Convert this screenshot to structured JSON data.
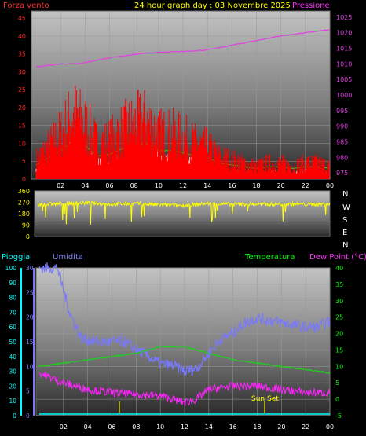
{
  "header": {
    "left": "Forza vento",
    "center": "24 hour graph day : 03 Novembre 2025",
    "right": "Pressione"
  },
  "direction_letters": [
    "N",
    "W",
    "S",
    "E",
    "N"
  ],
  "lower_labels": {
    "rain": "Pioggia",
    "humidity": "Umidita",
    "temperature": "Temperatura",
    "dewpoint": "Dew Point (°C)",
    "sunset": "Sun Set"
  },
  "colors": {
    "wind": "#ff0000",
    "gust": "#00ff00",
    "pressure": "#e040e0",
    "direction": "#ffff00",
    "humidity": "#7878ff",
    "temperature": "#22cc22",
    "dewpoint": "#ff22ff",
    "rain": "#00ffff",
    "text_red": "#ff3030",
    "text_yellow": "#ffff00",
    "text_magenta": "#ff33ff",
    "text_cyan": "#00ffff",
    "text_blue": "#8080ff",
    "text_green": "#00ff00"
  },
  "chart_data": [
    {
      "type": "line",
      "title": "24 hour graph day : 03 Novembre 2025",
      "xticks": [
        "02",
        "04",
        "06",
        "08",
        "10",
        "12",
        "14",
        "16",
        "18",
        "20",
        "22",
        "00"
      ],
      "y_left": {
        "label": "Forza vento",
        "ticks": [
          0,
          5,
          10,
          15,
          20,
          25,
          30,
          35,
          40,
          45
        ],
        "lim": [
          0,
          47
        ]
      },
      "y_right": {
        "label": "Pressione",
        "ticks": [
          975,
          980,
          985,
          990,
          995,
          1000,
          1005,
          1010,
          1015,
          1020,
          1025
        ],
        "lim": [
          973,
          1027
        ]
      },
      "series": [
        {
          "name": "Forza vento",
          "axis": "left",
          "x": [
            0,
            1,
            2,
            3,
            4,
            5,
            6,
            7,
            8,
            9,
            10,
            11,
            12,
            13,
            14,
            15,
            16,
            17,
            18,
            19,
            20,
            21,
            22,
            23,
            24
          ],
          "values": [
            6,
            10,
            14,
            20,
            17,
            11,
            12,
            15,
            17,
            18,
            14,
            14,
            13,
            11,
            10,
            7,
            6,
            5,
            4,
            5,
            5,
            4,
            5,
            5,
            4
          ]
        },
        {
          "name": "Pressione",
          "axis": "right",
          "x": [
            0,
            2,
            3.5,
            6,
            9,
            12,
            14,
            16,
            18,
            20,
            22,
            24
          ],
          "values": [
            1009,
            1010,
            1010,
            1012,
            1013.5,
            1014,
            1014.5,
            1016,
            1017.5,
            1019,
            1020,
            1021
          ]
        }
      ]
    },
    {
      "type": "line",
      "xticks": [
        "02",
        "04",
        "06",
        "08",
        "10",
        "12",
        "14",
        "16",
        "18",
        "20",
        "22",
        "00"
      ],
      "y_left": {
        "ticks": [
          0,
          90,
          180,
          270,
          360
        ],
        "lim": [
          0,
          360
        ]
      },
      "series": [
        {
          "name": "direction",
          "x": [
            0,
            2,
            4,
            6,
            8,
            10,
            12,
            14,
            16,
            18,
            20,
            22,
            24
          ],
          "values": [
            250,
            260,
            265,
            255,
            260,
            250,
            245,
            260,
            255,
            255,
            255,
            255,
            255
          ]
        }
      ]
    },
    {
      "type": "line",
      "xticks": [
        "02",
        "04",
        "06",
        "08",
        "10",
        "12",
        "14",
        "16",
        "18",
        "20",
        "22",
        "00"
      ],
      "y_left": {
        "label": "Pioggia",
        "ticks": [
          0,
          10,
          20,
          30,
          40,
          50,
          60,
          70,
          80,
          90,
          100
        ],
        "lim": [
          0,
          100
        ]
      },
      "y_left2": {
        "label": "Umidita",
        "ticks": [
          0,
          5,
          10,
          15,
          20,
          25,
          30
        ],
        "lim": [
          0,
          30
        ]
      },
      "y_right": {
        "label": "Temperatura / Dew Point (°C)",
        "ticks": [
          -5,
          0,
          5,
          10,
          15,
          20,
          25,
          30,
          35,
          40
        ],
        "lim": [
          -5,
          40
        ]
      },
      "series": [
        {
          "name": "Umidita",
          "axis": "left",
          "x": [
            0,
            1.5,
            2.5,
            3.5,
            5,
            7,
            9,
            10,
            11,
            12,
            13,
            14,
            15,
            16,
            17,
            18,
            20,
            22,
            23,
            24
          ],
          "values": [
            100,
            100,
            70,
            52,
            50,
            50,
            40,
            35,
            34,
            30,
            32,
            42,
            52,
            56,
            63,
            66,
            63,
            60,
            60,
            64
          ]
        },
        {
          "name": "Temperatura",
          "axis": "right",
          "x": [
            0,
            2,
            4,
            6,
            8,
            10,
            12,
            14,
            16,
            18,
            20,
            22,
            24
          ],
          "values": [
            10,
            11,
            12,
            13,
            14,
            16,
            16,
            14,
            12,
            11,
            10,
            9,
            8
          ]
        },
        {
          "name": "Dew Point (°C)",
          "axis": "right",
          "x": [
            0,
            2,
            4,
            6,
            8,
            10,
            11,
            12,
            13,
            14,
            16,
            18,
            20,
            22,
            24
          ],
          "values": [
            8,
            5,
            3,
            2,
            1.5,
            1,
            0,
            -1,
            0,
            3,
            4,
            4,
            3,
            2,
            2
          ]
        },
        {
          "name": "Pioggia",
          "axis": "left",
          "x": [
            0,
            24
          ],
          "values": [
            0,
            0
          ]
        }
      ],
      "annotations": [
        {
          "text": "Sun Set",
          "x": 19
        }
      ]
    }
  ]
}
